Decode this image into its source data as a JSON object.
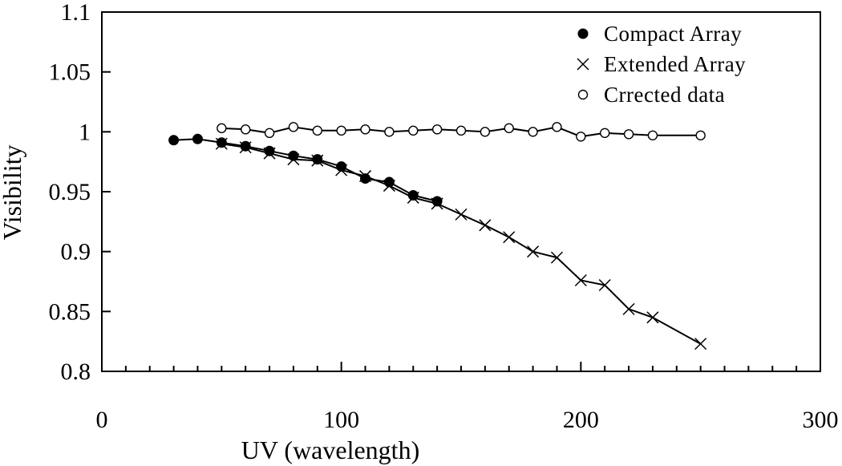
{
  "chart_data": {
    "type": "line",
    "title": "",
    "xlabel": "UV (wavelength)",
    "ylabel": "Visibility",
    "xlim": [
      0,
      300
    ],
    "ylim": [
      0.8,
      1.1
    ],
    "x_ticks": [
      "0",
      "100",
      "200",
      "300"
    ],
    "y_ticks": [
      "0.8",
      "0.85",
      "0.9",
      "0.95",
      "1",
      "1.05",
      "1.1"
    ],
    "x_tick_values": [
      0,
      100,
      200,
      300
    ],
    "y_tick_values": [
      0.8,
      0.85,
      0.9,
      0.95,
      1.0,
      1.05,
      1.1
    ],
    "x_minor_step": 10,
    "grid": false,
    "legend_position": "top-right",
    "series": [
      {
        "name": "Compact Array",
        "marker": "filled-circle",
        "color": "#000000",
        "x": [
          30,
          40,
          50,
          60,
          70,
          80,
          90,
          100,
          110,
          120,
          130,
          140
        ],
        "y": [
          0.993,
          0.994,
          0.991,
          0.988,
          0.984,
          0.98,
          0.977,
          0.971,
          0.961,
          0.958,
          0.947,
          0.942
        ]
      },
      {
        "name": "Extended Array",
        "marker": "cross",
        "color": "#000000",
        "x": [
          50,
          60,
          70,
          80,
          90,
          100,
          110,
          120,
          130,
          140,
          150,
          160,
          170,
          180,
          190,
          200,
          210,
          220,
          230,
          250
        ],
        "y": [
          0.99,
          0.987,
          0.982,
          0.977,
          0.976,
          0.968,
          0.963,
          0.955,
          0.945,
          0.94,
          0.931,
          0.922,
          0.912,
          0.9,
          0.895,
          0.876,
          0.872,
          0.852,
          0.845,
          0.823
        ]
      },
      {
        "name": "Crrected data",
        "marker": "open-circle",
        "color": "#000000",
        "x": [
          50,
          60,
          70,
          80,
          90,
          100,
          110,
          120,
          130,
          140,
          150,
          160,
          170,
          180,
          190,
          200,
          210,
          220,
          230,
          250
        ],
        "y": [
          1.003,
          1.002,
          0.999,
          1.004,
          1.001,
          1.001,
          1.002,
          1.0,
          1.001,
          1.002,
          1.001,
          1.0,
          1.003,
          1.0,
          1.004,
          0.996,
          0.999,
          0.998,
          0.997,
          0.997
        ]
      }
    ]
  }
}
